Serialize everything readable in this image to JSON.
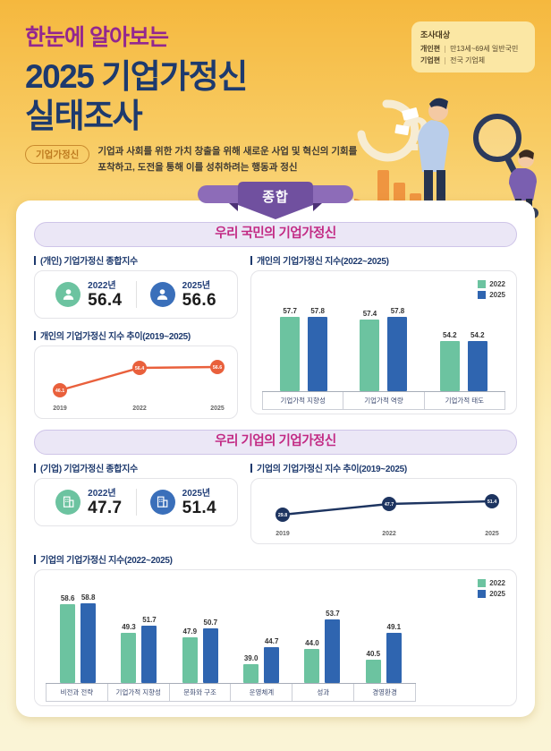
{
  "header": {
    "subtitle": "한눈에 알아보는",
    "title_line1": "2025 기업가정신",
    "title_line2": "실태조사",
    "survey_info": {
      "title": "조사대상",
      "rows": [
        {
          "label": "개인편",
          "value": "만13세~69세 일반국민"
        },
        {
          "label": "기업편",
          "value": "전국 기업체"
        }
      ]
    }
  },
  "definition": {
    "badge": "기업가정신",
    "line1": "기업과 사회를 위한 가치 창출을 위해 새로운 사업 및 혁신의 기회를",
    "line2": "포착하고, 도전을 통해 이를 성취하려는 행동과 정신"
  },
  "ribbon_label": "종합",
  "colors": {
    "series_2022": "#6cc3a0",
    "series_2025": "#2f65b0",
    "line_individual": "#e9603c",
    "line_corporate": "#1d3460",
    "section_title": "#c22a84",
    "ribbon": "#70509f"
  },
  "sections": [
    {
      "title": "우리 국민의 기업가정신",
      "summary_label": "(개인) 기업가정신 종합지수",
      "stats": [
        {
          "year": "2022년",
          "value": "56.4"
        },
        {
          "year": "2025년",
          "value": "56.6"
        }
      ],
      "trend_label": "개인의 기업가정신 지수 추이(2019~2025)",
      "bars_label": "개인의 기업가정신 지수(2022~2025)"
    },
    {
      "title": "우리 기업의 기업가정신",
      "summary_label": "(기업) 기업가정신 종합지수",
      "stats": [
        {
          "year": "2022년",
          "value": "47.7"
        },
        {
          "year": "2025년",
          "value": "51.4"
        }
      ],
      "trend_label": "기업의 기업가정신 지수 추이(2019~2025)",
      "bars_label": "기업의 기업가정신 지수(2022~2025)"
    }
  ],
  "chart_data": [
    {
      "type": "bar",
      "title": "개인의 기업가정신 지수(2022~2025)",
      "categories": [
        "기업가적 지향성",
        "기업가적 역량",
        "기업가적 태도"
      ],
      "series": [
        {
          "name": "2022",
          "values": [
            57.7,
            57.4,
            54.2
          ],
          "color": "#6cc3a0"
        },
        {
          "name": "2025",
          "values": [
            57.8,
            57.8,
            54.2
          ],
          "color": "#2f65b0"
        }
      ],
      "ylim": [
        47,
        61
      ],
      "legend_position": "top-right"
    },
    {
      "type": "line",
      "title": "개인의 기업가정신 지수 추이(2019~2025)",
      "x": [
        "2019",
        "2022",
        "2025"
      ],
      "values": [
        46.1,
        56.4,
        56.6
      ],
      "color": "#e9603c",
      "ylim": [
        43,
        60
      ]
    },
    {
      "type": "line",
      "title": "기업의 기업가정신 지수 추이(2019~2025)",
      "x": [
        "2019",
        "2022",
        "2025"
      ],
      "values": [
        29.8,
        47.7,
        51.4
      ],
      "color": "#1d3460",
      "ylim": [
        18,
        65
      ]
    },
    {
      "type": "bar",
      "title": "기업의 기업가정신 지수(2022~2025)",
      "categories": [
        "비전과 전략",
        "기업가적 지향성",
        "문화와 구조",
        "운영체계",
        "성과",
        "경영환경"
      ],
      "series": [
        {
          "name": "2022",
          "values": [
            58.6,
            49.3,
            47.9,
            39.0,
            44.0,
            40.5
          ],
          "color": "#6cc3a0"
        },
        {
          "name": "2025",
          "values": [
            58.8,
            51.7,
            50.7,
            44.7,
            53.7,
            49.1
          ],
          "color": "#2f65b0"
        }
      ],
      "ylim": [
        33,
        62
      ],
      "legend_position": "top-right"
    }
  ]
}
